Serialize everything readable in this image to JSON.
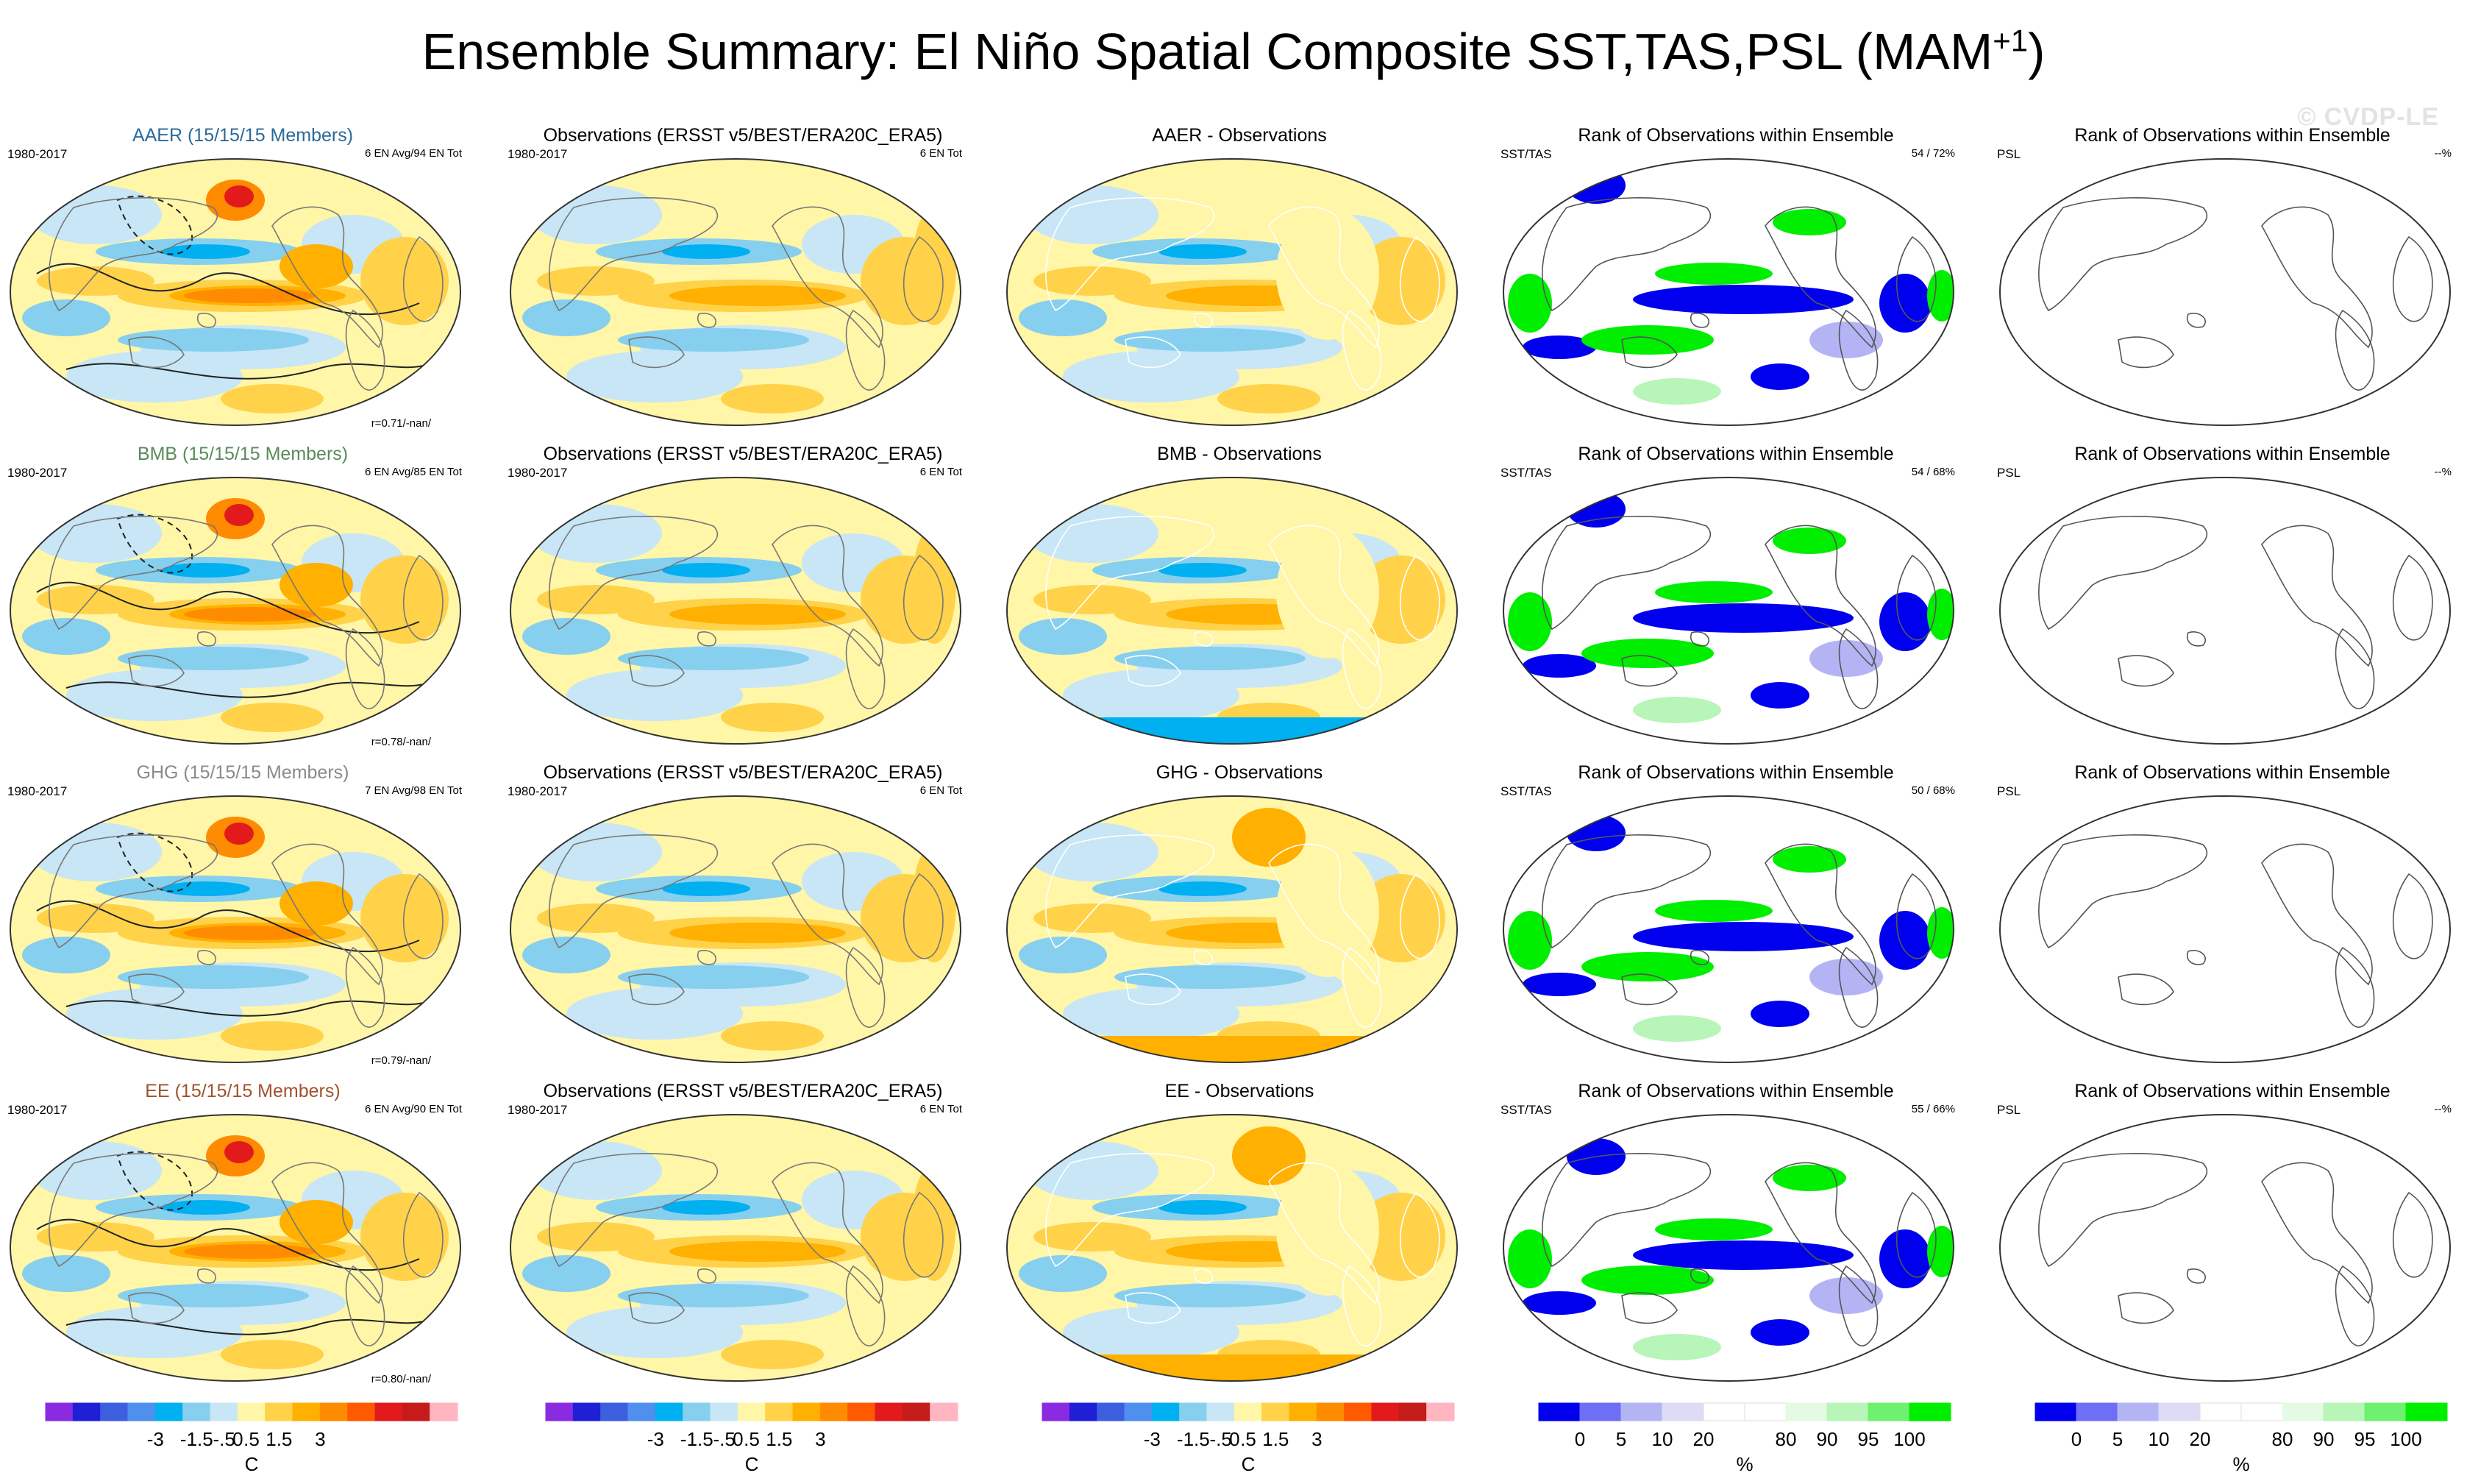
{
  "title": "Ensemble Summary: El Niño Spatial Composite SST,TAS,PSL (MAM",
  "title_sup": "+1",
  "title_end": ")",
  "watermark": "© CVDP-LE",
  "rows": [
    {
      "model": {
        "title": "AAER (15/15/15 Members)",
        "title_color": "#2b6a9a",
        "period": "1980-2017",
        "events": "6 EN Avg/94 EN Tot",
        "corr": "r=0.71/-nan/"
      },
      "obs": {
        "title": "Observations (ERSST v5/BEST/ERA20C_ERA5)",
        "period": "1980-2017",
        "events": "6 EN Tot"
      },
      "diff": {
        "title": "AAER - Observations"
      },
      "rank_sst": {
        "title": "Rank of Observations within Ensemble",
        "var": "SST/TAS",
        "pct": "54 /  72%"
      },
      "rank_psl": {
        "title": "Rank of Observations within Ensemble",
        "var": "PSL",
        "pct": "--%"
      }
    },
    {
      "model": {
        "title": "BMB (15/15/15 Members)",
        "title_color": "#5a8a5a",
        "period": "1980-2017",
        "events": "6 EN Avg/85 EN Tot",
        "corr": "r=0.78/-nan/"
      },
      "obs": {
        "title": "Observations (ERSST v5/BEST/ERA20C_ERA5)",
        "period": "1980-2017",
        "events": "6 EN Tot"
      },
      "diff": {
        "title": "BMB - Observations"
      },
      "rank_sst": {
        "title": "Rank of Observations within Ensemble",
        "var": "SST/TAS",
        "pct": "54 /  68%"
      },
      "rank_psl": {
        "title": "Rank of Observations within Ensemble",
        "var": "PSL",
        "pct": "--%"
      }
    },
    {
      "model": {
        "title": "GHG (15/15/15 Members)",
        "title_color": "#8a8a8a",
        "period": "1980-2017",
        "events": "7 EN Avg/98 EN Tot",
        "corr": "r=0.79/-nan/"
      },
      "obs": {
        "title": "Observations (ERSST v5/BEST/ERA20C_ERA5)",
        "period": "1980-2017",
        "events": "6 EN Tot"
      },
      "diff": {
        "title": "GHG - Observations"
      },
      "rank_sst": {
        "title": "Rank of Observations within Ensemble",
        "var": "SST/TAS",
        "pct": "50 /  68%"
      },
      "rank_psl": {
        "title": "Rank of Observations within Ensemble",
        "var": "PSL",
        "pct": ""
      }
    },
    {
      "model": {
        "title": "EE (15/15/15 Members)",
        "title_color": "#a0522d",
        "period": "1980-2017",
        "events": "6 EN Avg/90 EN Tot",
        "corr": "r=0.80/-nan/"
      },
      "obs": {
        "title": "Observations (ERSST v5/BEST/ERA20C_ERA5)",
        "period": "1980-2017",
        "events": "6 EN Tot"
      },
      "diff": {
        "title": "EE - Observations"
      },
      "rank_sst": {
        "title": "Rank of Observations within Ensemble",
        "var": "SST/TAS",
        "pct": "55 /  66%"
      },
      "rank_psl": {
        "title": "Rank of Observations within Ensemble",
        "var": "PSL",
        "pct": "--%"
      }
    }
  ],
  "temp_colorbar": {
    "colors": [
      "#8a2be2",
      "#1f1fd6",
      "#3c5fe0",
      "#4f8fee",
      "#00b0f0",
      "#87cfee",
      "#c8e6f5",
      "#fff6a8",
      "#ffd24a",
      "#ffb000",
      "#ff8c00",
      "#ff5a00",
      "#e31a1c",
      "#c51b1b",
      "#ffb6c1"
    ],
    "ticks": [
      "-3",
      "-1.5",
      "-.5",
      "0",
      ".5",
      "1.5",
      "3"
    ],
    "unit": "C"
  },
  "rank_colorbar": {
    "colors": [
      "#0000ee",
      "#6f6ff5",
      "#b4b4f5",
      "#dcdcf7",
      "#ffffff",
      "#ffffff",
      "#e4fae4",
      "#b8f5b8",
      "#6ff06f",
      "#00ee00"
    ],
    "ticks": [
      "0",
      "5",
      "10",
      "20",
      "80",
      "90",
      "95",
      "100"
    ],
    "unit": "%"
  },
  "map_colors": {
    "warm1": "#fff6a8",
    "warm2": "#ffd24a",
    "warm3": "#ffb000",
    "warm4": "#ff8c00",
    "warm5": "#e31a1c",
    "cool1": "#c8e6f5",
    "cool2": "#87cfee",
    "cool3": "#00b0f0",
    "rank_low": "#0000ee",
    "rank_low2": "#b4b4f5",
    "rank_high": "#00ee00",
    "rank_high2": "#b8f5b8"
  }
}
